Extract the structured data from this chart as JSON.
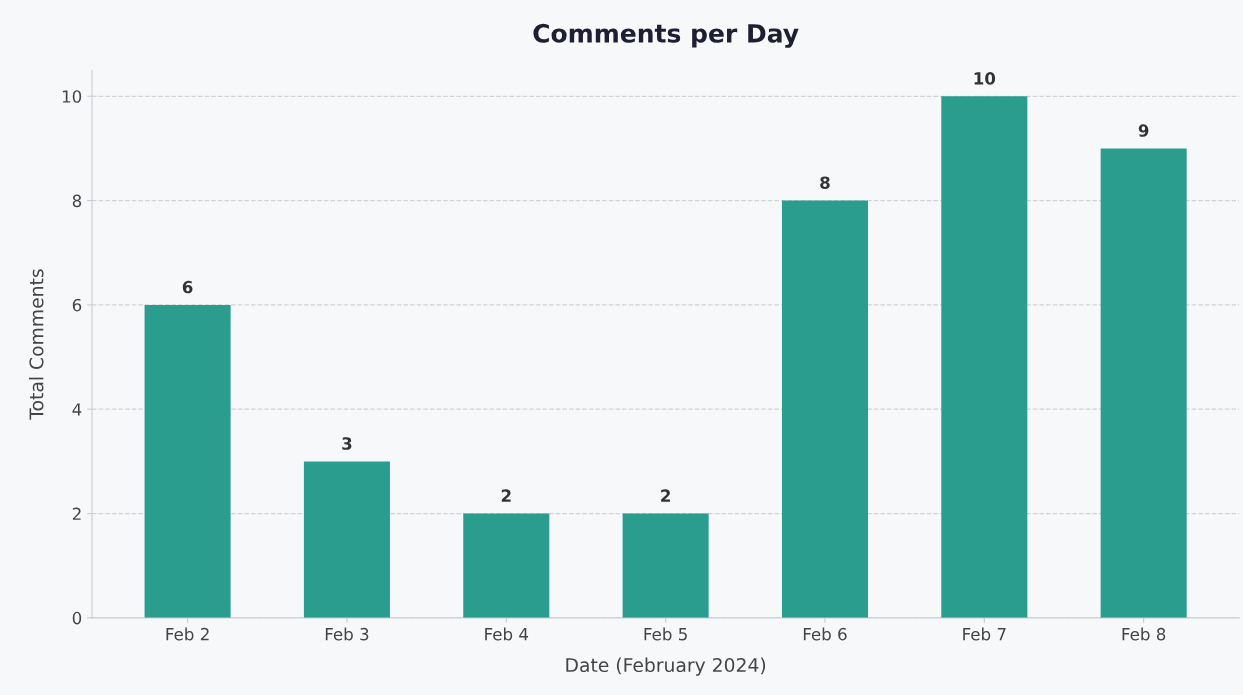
{
  "chart_data": {
    "type": "bar",
    "title": "Comments per Day",
    "xlabel": "Date (February 2024)",
    "ylabel": "Total Comments",
    "categories": [
      "Feb 2",
      "Feb 3",
      "Feb 4",
      "Feb 5",
      "Feb 6",
      "Feb 7",
      "Feb 8"
    ],
    "values": [
      6,
      3,
      2,
      2,
      8,
      10,
      9
    ],
    "color": "#2a9d8f",
    "ylim": [
      0,
      10.5
    ],
    "yticks": [
      0,
      2,
      4,
      6,
      8,
      10
    ],
    "grid": "y",
    "data_labels": true
  }
}
